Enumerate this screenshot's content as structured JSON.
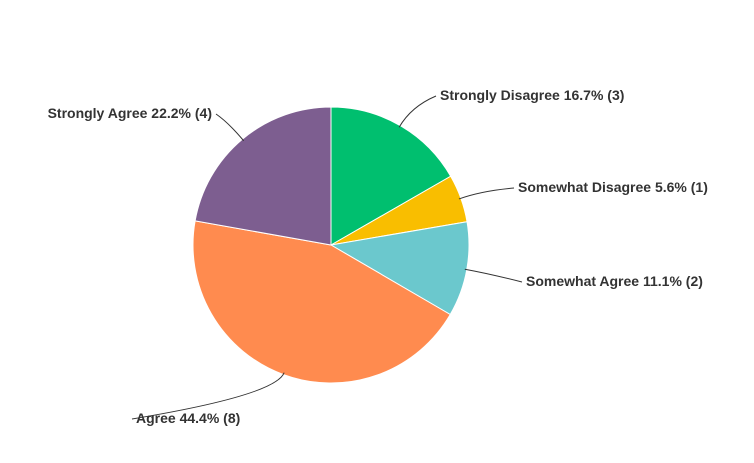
{
  "chart_data": {
    "type": "pie",
    "categories": [
      "Strongly Disagree",
      "Somewhat Disagree",
      "Somewhat Agree",
      "Agree",
      "Strongly Agree"
    ],
    "values": [
      16.7,
      5.6,
      11.1,
      44.4,
      22.2
    ],
    "value_labels": [
      "16.7% (3)",
      "5.6% (1)",
      "11.1% (2)",
      "44.4% (8)",
      "22.2% (4)"
    ],
    "colors": [
      "#00bf6f",
      "#f9be00",
      "#6bc8cd",
      "#ff8b4f",
      "#7d5e90"
    ]
  }
}
